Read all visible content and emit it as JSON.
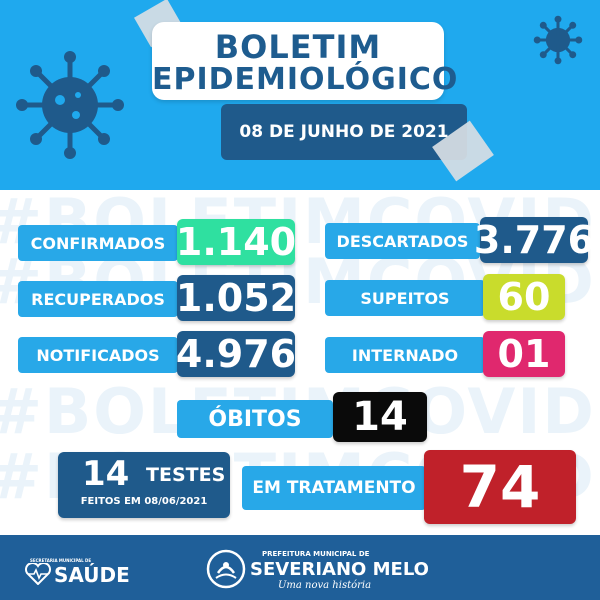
{
  "header": {
    "title_line1": "BOLETIM",
    "title_line2": "EPIDEMIOLÓGICO",
    "date": "08 DE JUNHO DE 2021",
    "icons": [
      "virus-icon",
      "virus-icon"
    ]
  },
  "watermark": "#BOLETIMCOVID19",
  "stats": {
    "confirmados": {
      "label": "CONFIRMADOS",
      "value": "1.140"
    },
    "descartados": {
      "label": "DESCARTADOS",
      "value": "3.776"
    },
    "recuperados": {
      "label": "RECUPERADOS",
      "value": "1.052"
    },
    "suspeitos": {
      "label": "SUPEITOS",
      "value": "60"
    },
    "notificados": {
      "label": "NOTIFICADOS",
      "value": "4.976"
    },
    "internado": {
      "label": "INTERNADO",
      "value": "01"
    },
    "obitos": {
      "label": "ÓBITOS",
      "value": "14"
    },
    "testes": {
      "value": "14",
      "label": "TESTES",
      "note": "FEITOS EM 08/06/2021"
    },
    "em_tratamento": {
      "label": "EM TRATAMENTO",
      "value": "74"
    }
  },
  "footer": {
    "saude_small": "SECRETARIA MUNICIPAL DE",
    "saude": "SAÚDE",
    "pref_small": "PREFEITURA MUNICIPAL DE",
    "pref_name": "SEVERIANO MELO",
    "pref_slogan": "Uma nova história"
  },
  "colors": {
    "header_blue": "#1fa9ee",
    "navy": "#1f5a8b",
    "label_blue": "#28a8e8",
    "green": "#2fe0a0",
    "yellow_green": "#c9dc2c",
    "magenta": "#e0286e",
    "black": "#0a0a0a",
    "red": "#c0212a"
  }
}
